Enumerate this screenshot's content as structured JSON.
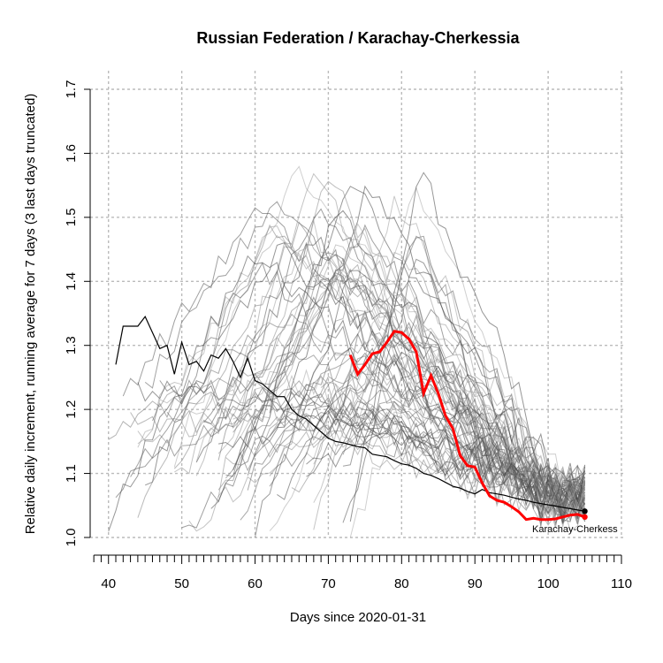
{
  "chart_data": {
    "type": "line",
    "title": "Russian Federation / Karachay-Cherkessia",
    "xlabel": "Days since 2020-01-31",
    "ylabel": "Relative daily increment, running average for 7 days (3 last days truncated)",
    "xlim": [
      37.5,
      110
    ],
    "ylim": [
      1.0,
      1.7
    ],
    "x_ticks": [
      40,
      50,
      60,
      70,
      80,
      90,
      100,
      110
    ],
    "y_ticks": [
      1.0,
      1.1,
      1.2,
      1.3,
      1.4,
      1.5,
      1.6,
      1.7
    ],
    "grid": true,
    "series": [
      {
        "name": "Russian Federation",
        "color": "#000000",
        "x": [
          41,
          42,
          43,
          44,
          45,
          46,
          47,
          48,
          49,
          50,
          51,
          52,
          53,
          54,
          55,
          56,
          57,
          58,
          59,
          60,
          61,
          62,
          63,
          64,
          65,
          66,
          67,
          68,
          69,
          70,
          71,
          72,
          73,
          74,
          75,
          76,
          77,
          78,
          79,
          80,
          81,
          82,
          83,
          84,
          85,
          86,
          87,
          88,
          89,
          90,
          91,
          92,
          93,
          94,
          95,
          96,
          97,
          98,
          99,
          100,
          101,
          102,
          103,
          104,
          105
        ],
        "values": [
          1.27,
          1.33,
          1.33,
          1.33,
          1.345,
          1.32,
          1.295,
          1.3,
          1.255,
          1.305,
          1.27,
          1.275,
          1.26,
          1.285,
          1.28,
          1.295,
          1.275,
          1.25,
          1.28,
          1.245,
          1.24,
          1.23,
          1.22,
          1.22,
          1.2,
          1.19,
          1.185,
          1.175,
          1.165,
          1.155,
          1.15,
          1.148,
          1.145,
          1.142,
          1.14,
          1.13,
          1.128,
          1.126,
          1.12,
          1.115,
          1.113,
          1.108,
          1.1,
          1.097,
          1.092,
          1.086,
          1.08,
          1.077,
          1.072,
          1.068,
          1.075,
          1.07,
          1.068,
          1.066,
          1.063,
          1.06,
          1.058,
          1.055,
          1.053,
          1.051,
          1.049,
          1.047,
          1.045,
          1.043,
          1.041
        ]
      },
      {
        "name": "Karachay-Cherkessia",
        "color": "#ff0000",
        "x": [
          73,
          74,
          75,
          76,
          77,
          78,
          79,
          80,
          81,
          82,
          83,
          84,
          85,
          86,
          87,
          88,
          89,
          90,
          91,
          92,
          93,
          94,
          95,
          96,
          97,
          98,
          99,
          100,
          101,
          102,
          103,
          104,
          105
        ],
        "values": [
          1.285,
          1.255,
          1.27,
          1.287,
          1.29,
          1.305,
          1.322,
          1.32,
          1.31,
          1.29,
          1.225,
          1.253,
          1.225,
          1.19,
          1.17,
          1.128,
          1.112,
          1.11,
          1.085,
          1.065,
          1.058,
          1.055,
          1.048,
          1.04,
          1.028,
          1.03,
          1.028,
          1.028,
          1.029,
          1.032,
          1.035,
          1.036,
          1.032
        ]
      }
    ],
    "end_label": "Karachay-Cherkess"
  }
}
